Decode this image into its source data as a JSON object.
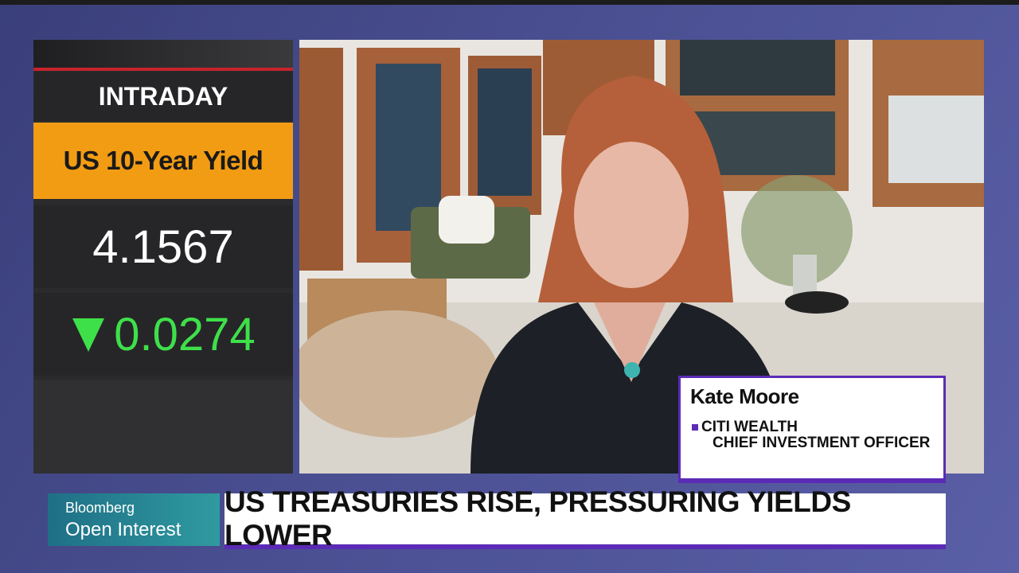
{
  "panel": {
    "label": "INTRADAY",
    "instrument": "US 10-Year Yield",
    "value": "4.1567",
    "change": "0.0274"
  },
  "lower_third": {
    "name": "Kate Moore",
    "organization": "CITI WEALTH",
    "role": "CHIEF INVESTMENT OFFICER"
  },
  "ticker": {
    "brand": "Bloomberg",
    "show": "Open Interest",
    "headline": "US TREASURIES RISE, PRESSURING YIELDS LOWER"
  }
}
